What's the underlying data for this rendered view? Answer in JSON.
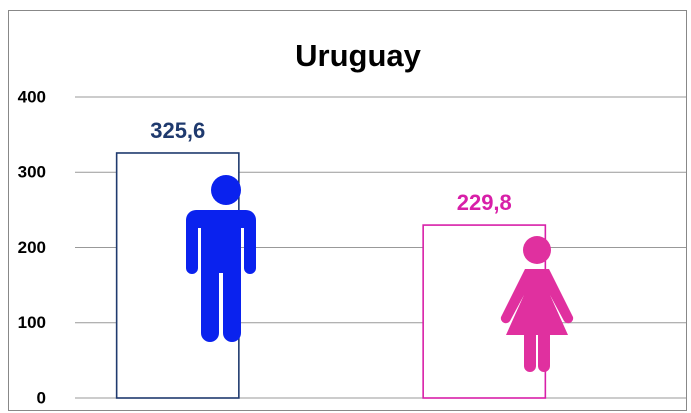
{
  "chart_data": {
    "type": "bar",
    "title": "Uruguay",
    "categories": [
      null,
      null
    ],
    "values": [
      325.6,
      229.8
    ],
    "value_labels": [
      "325,6",
      "229,8"
    ],
    "colors": [
      "#1f3a6e",
      "#d81fa8"
    ],
    "ylim": [
      0,
      400
    ],
    "yticks": [
      0,
      100,
      200,
      300,
      400
    ],
    "grid": true
  }
}
